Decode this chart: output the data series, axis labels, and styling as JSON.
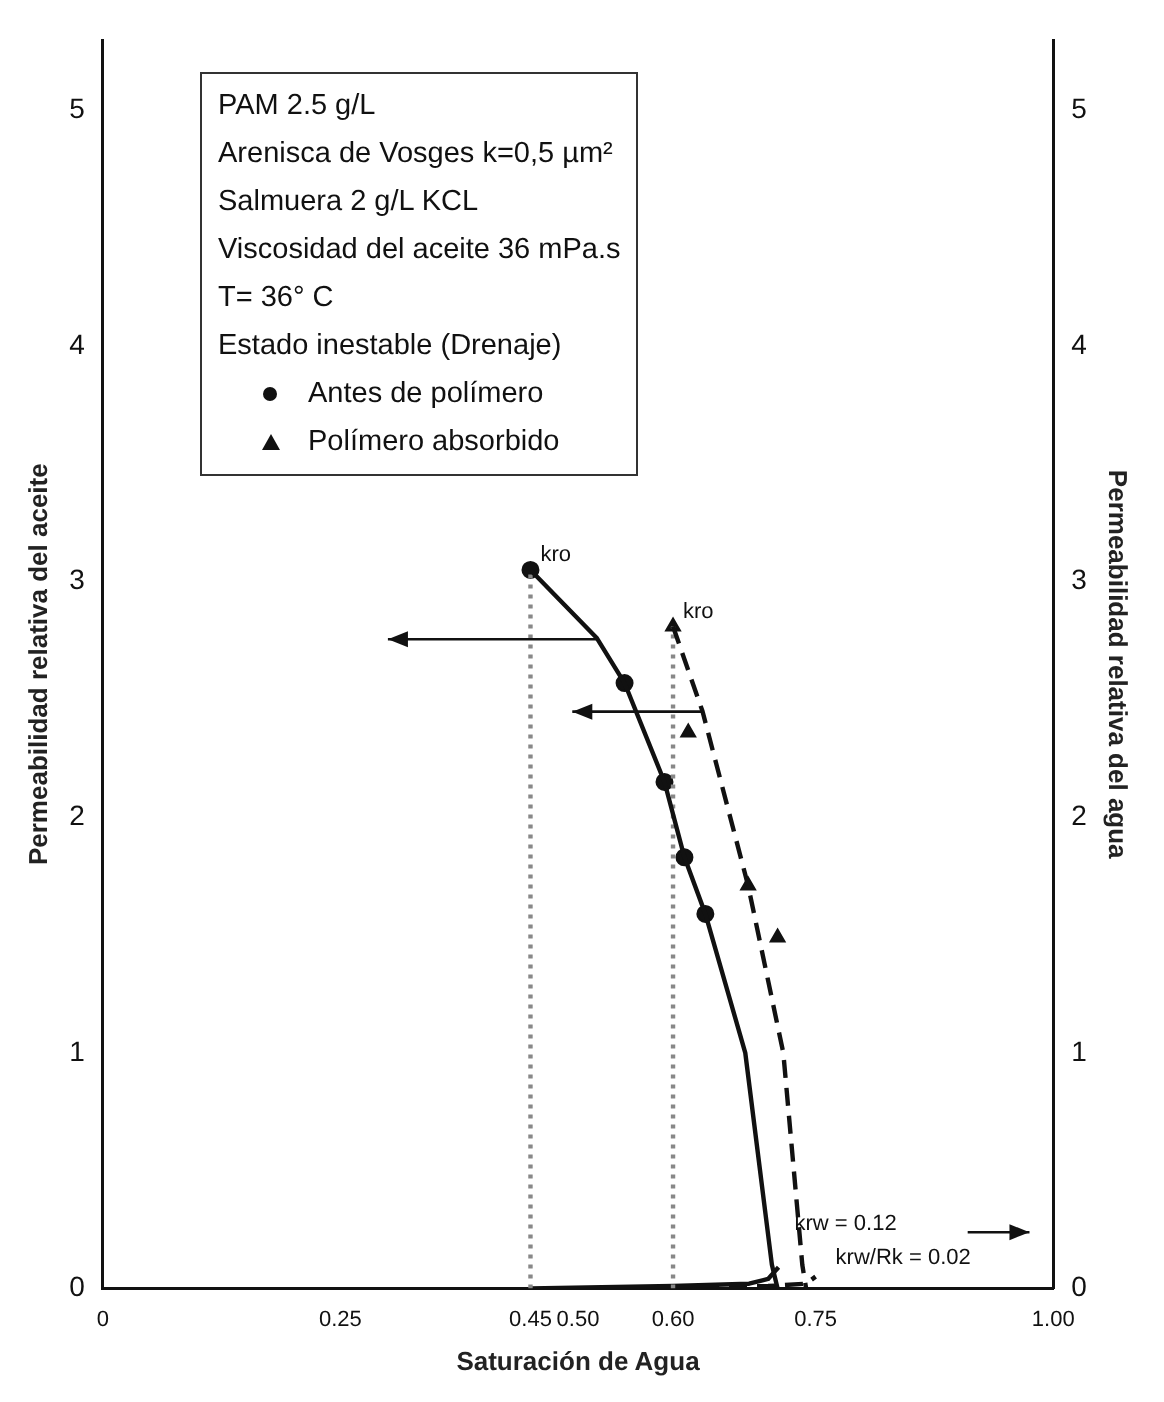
{
  "chart_data": {
    "type": "line",
    "xlabel": "Saturación de Agua",
    "ylabel": "Permeabilidad relativa del aceite",
    "y2label": "Permeabilidad relativa del agua",
    "annotations": [
      "PAM 2.5 g/L",
      "Arenisca de Vosges k=0,5 µm²",
      "Salmuera 2 g/L KCL",
      "Viscosidad del aceite 36 mPa.s",
      "T= 36° C",
      "Estado inestable (Drenaje)",
      {
        "text": "kro",
        "x": 0.45,
        "y": 3.05
      },
      {
        "text": "kro",
        "x": 0.6,
        "y": 2.81
      },
      {
        "text": "krw = 0.12",
        "x": 0.711,
        "y": 0.09
      },
      {
        "text": "krw/Rk = 0.02",
        "x": 0.75,
        "y": 0.05
      }
    ],
    "series": [
      {
        "color": "#111111",
        "marker": "none",
        "line_style": "solid",
        "x": [
          0.45,
          0.52,
          0.549,
          0.591,
          0.612,
          0.634,
          0.676,
          0.704,
          0.71
        ],
        "values": [
          3.05,
          2.76,
          2.57,
          2.15,
          1.83,
          1.59,
          1.0,
          0.1,
          0
        ]
      },
      {
        "color": "#111111",
        "marker": "none",
        "line_style": "dashed",
        "x": [
          0.6,
          0.631,
          0.679,
          0.716,
          0.736,
          0.74
        ],
        "values": [
          2.81,
          2.45,
          1.71,
          1.0,
          0.1,
          0
        ]
      },
      {
        "color": "#888888",
        "marker": "none",
        "line_style": "dotted",
        "x": [
          0.45,
          0.45
        ],
        "values": [
          0,
          3.05
        ]
      },
      {
        "color": "#888888",
        "marker": "none",
        "line_style": "dotted",
        "x": [
          0.6,
          0.6
        ],
        "values": [
          0,
          2.81
        ]
      },
      {
        "color": "#111111",
        "marker": "none",
        "line_style": "solid",
        "x": [
          0.45,
          0.6,
          0.68,
          0.7,
          0.711
        ],
        "values": [
          0,
          0.01,
          0.02,
          0.04,
          0.09
        ]
      },
      {
        "color": "#111111",
        "marker": "none",
        "line_style": "dashed",
        "x": [
          0.6,
          0.7,
          0.74,
          0.75
        ],
        "values": [
          0,
          0.01,
          0.02,
          0.05
        ]
      },
      {
        "type": "scatter",
        "name": "Antes de polímero",
        "color": "#111111",
        "marker": "circle",
        "x": [
          0.45,
          0.549,
          0.591,
          0.612,
          0.634
        ],
        "values": [
          3.05,
          2.57,
          2.15,
          1.83,
          1.59
        ]
      },
      {
        "type": "scatter",
        "name": "Polímero absorbido",
        "color": "#111111",
        "marker": "triangle",
        "x": [
          0.6,
          0.616,
          0.679,
          0.71
        ],
        "values": [
          2.81,
          2.36,
          1.71,
          1.49
        ]
      }
    ],
    "xlim": [
      0,
      1
    ],
    "xticks": [
      {
        "value": 0,
        "label": "0"
      },
      0.25,
      {
        "value": 0.45,
        "label": "0.45"
      },
      {
        "value": 0.5,
        "label": "0.50"
      },
      {
        "value": 0.6,
        "label": "0.60"
      },
      0.75,
      {
        "value": 1,
        "label": "1.00"
      }
    ],
    "ylim": [
      0,
      5.3
    ],
    "yticks": [
      0,
      1,
      2,
      3,
      4,
      5
    ],
    "y2lim": [
      0,
      5.3
    ],
    "y2ticks": [
      0,
      1,
      2,
      3,
      4,
      5
    ],
    "grid": false,
    "legend": "top left"
  }
}
